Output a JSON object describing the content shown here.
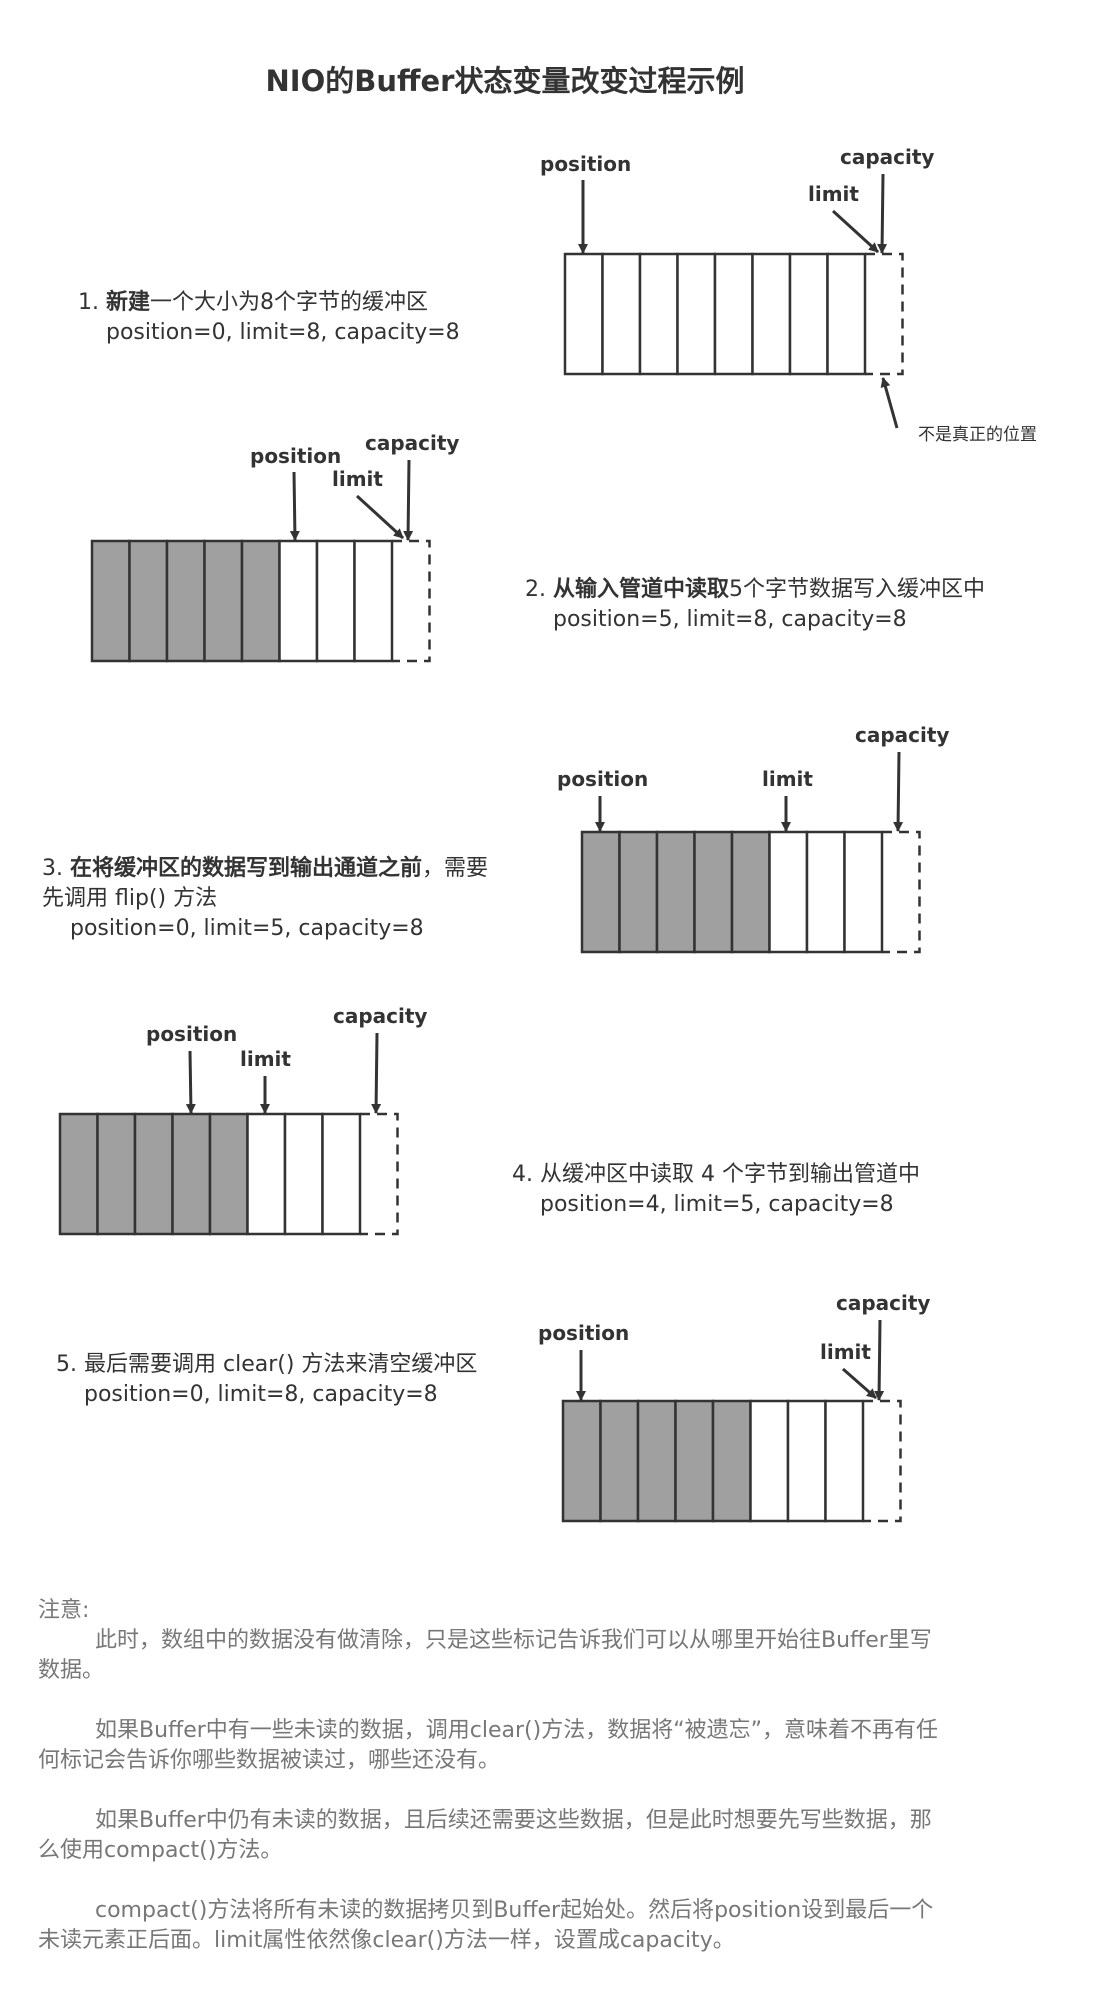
{
  "title": "NIO的Buffer状态变量改变过程示例",
  "labels": {
    "position": "position",
    "limit": "limit",
    "capacity": "capacity"
  },
  "steps": [
    {
      "num": "1.",
      "bold": "新建",
      "rest": "一个大小为8个字节的缓冲区",
      "state": "position=0, limit=8, capacity=8",
      "filled": 0
    },
    {
      "num": "2.",
      "bold": "从输入管道中读取",
      "rest": "5个字节数据写入缓冲区中",
      "state": "position=5, limit=8, capacity=8",
      "filled": 5
    },
    {
      "num": "3.",
      "bold": "在将缓冲区的数据写到输出通道之前",
      "rest": "，需要",
      "rest2": "先调用 flip() 方法",
      "state": "position=0, limit=5, capacity=8",
      "filled": 5
    },
    {
      "num": "4.",
      "bold": "",
      "rest": "从缓冲区中读取 4 个字节到输出管道中",
      "state": "position=4, limit=5, capacity=8",
      "filled": 5
    },
    {
      "num": "5.",
      "bold": "",
      "rest": "最后需要调用 clear() 方法来清空缓冲区",
      "state": "position=0, limit=8, capacity=8",
      "filled": 5
    }
  ],
  "hint": "不是真正的位置",
  "note": {
    "heading": "注意:",
    "paragraphs": [
      "此时，数组中的数据没有做清除，只是这些标记告诉我们可以从哪里开始往Buffer里写数据。",
      "如果Buffer中有一些未读的数据，调用clear()方法，数据将“被遗忘”，意味着不再有任何标记会告诉你哪些数据被读过，哪些还没有。",
      "如果Buffer中仍有未读的数据，且后续还需要这些数据，但是此时想要先写些数据，那么使用compact()方法。",
      "compact()方法将所有未读的数据拷贝到Buffer起始处。然后将position设到最后一个未读元素正后面。limit属性依然像clear()方法一样，设置成capacity。"
    ]
  },
  "colors": {
    "filled": "#a0a0a0",
    "empty": "#ffffff",
    "stroke": "#333333"
  }
}
